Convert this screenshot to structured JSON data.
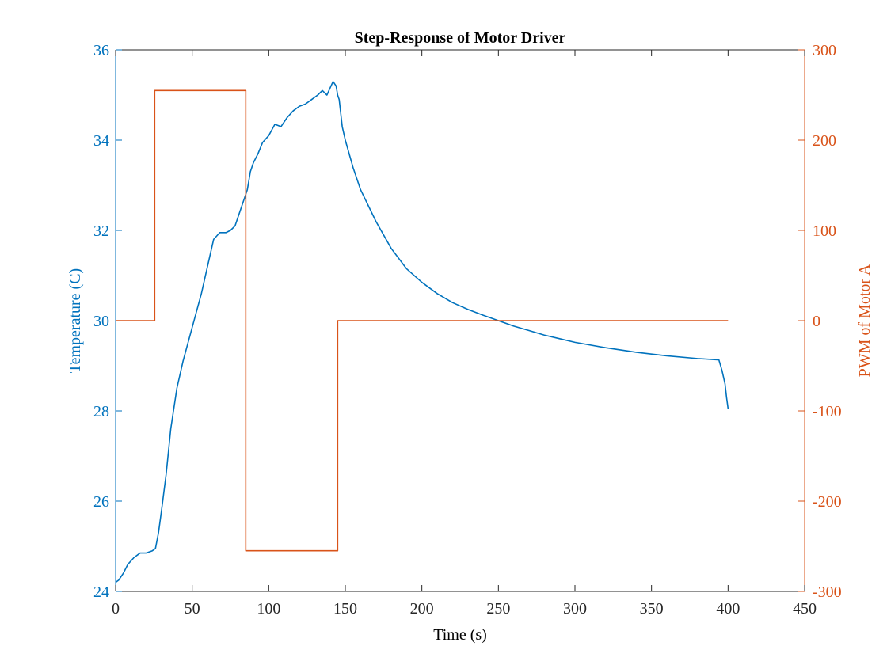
{
  "chart_data": {
    "type": "line",
    "title": "Step-Response of Motor Driver",
    "xlabel": "Time (s)",
    "xlim": [
      0,
      450
    ],
    "xticks": [
      "0",
      "50",
      "100",
      "150",
      "200",
      "250",
      "300",
      "350",
      "400",
      "450"
    ],
    "left_axis": {
      "label": "Temperature (C)",
      "ylim": [
        24,
        36
      ],
      "ticks": [
        "24",
        "26",
        "28",
        "30",
        "32",
        "34",
        "36"
      ],
      "color": "#0072BD"
    },
    "right_axis": {
      "label": "PWM of Motor A",
      "ylim": [
        -300,
        300
      ],
      "ticks": [
        "-300",
        "-200",
        "-100",
        "0",
        "100",
        "200",
        "300"
      ],
      "color": "#D95319"
    },
    "grid": false,
    "series": [
      {
        "axis": "left",
        "color": "#0072BD",
        "x": [
          0,
          2,
          5,
          8,
          12,
          16,
          20,
          24,
          26,
          28,
          30,
          33,
          36,
          40,
          44,
          48,
          52,
          56,
          60,
          64,
          68,
          72,
          75,
          78,
          82,
          86,
          88,
          90,
          93,
          96,
          100,
          104,
          108,
          112,
          116,
          120,
          124,
          128,
          132,
          135,
          138,
          140,
          142,
          144,
          145,
          146,
          147,
          148,
          150,
          155,
          160,
          170,
          180,
          190,
          200,
          210,
          220,
          230,
          240,
          250,
          260,
          270,
          280,
          290,
          300,
          320,
          340,
          360,
          380,
          390,
          394,
          396,
          398,
          399,
          400
        ],
        "y": [
          24.2,
          24.25,
          24.4,
          24.6,
          24.75,
          24.85,
          24.85,
          24.9,
          24.95,
          25.3,
          25.8,
          26.6,
          27.6,
          28.5,
          29.1,
          29.6,
          30.1,
          30.6,
          31.2,
          31.8,
          31.95,
          31.95,
          32.0,
          32.1,
          32.5,
          32.9,
          33.3,
          33.5,
          33.7,
          33.95,
          34.1,
          34.35,
          34.3,
          34.5,
          34.65,
          34.75,
          34.8,
          34.9,
          35.0,
          35.1,
          35.0,
          35.15,
          35.3,
          35.2,
          35.0,
          34.9,
          34.6,
          34.3,
          34.0,
          33.4,
          32.9,
          32.2,
          31.6,
          31.15,
          30.85,
          30.6,
          30.4,
          30.25,
          30.12,
          30.0,
          29.88,
          29.78,
          29.68,
          29.6,
          29.52,
          29.4,
          29.3,
          29.22,
          29.16,
          29.14,
          29.13,
          28.9,
          28.6,
          28.3,
          28.05
        ]
      },
      {
        "axis": "right",
        "color": "#D95319",
        "x": [
          0,
          25.5,
          25.5,
          85,
          85,
          145,
          145,
          400
        ],
        "y": [
          0,
          0,
          255,
          255,
          -255,
          -255,
          0,
          0
        ]
      }
    ]
  }
}
